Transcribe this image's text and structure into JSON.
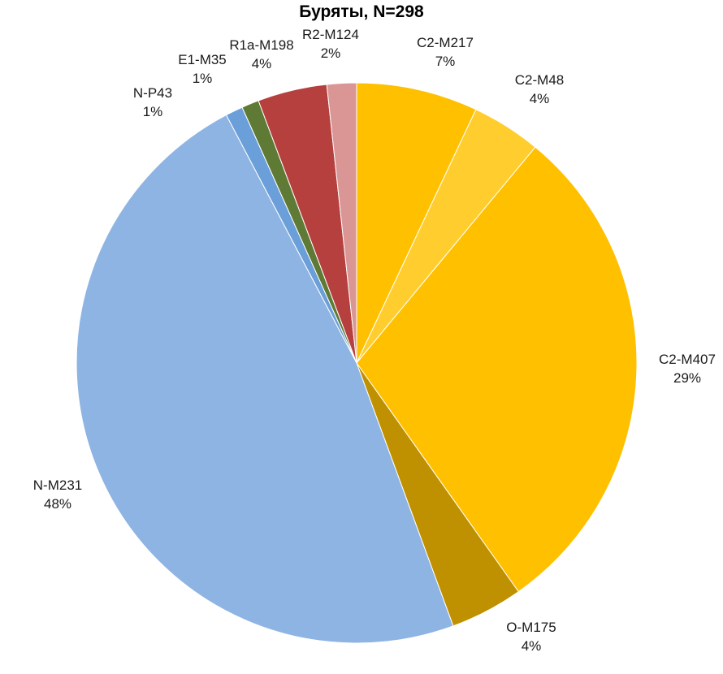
{
  "chart_data": {
    "type": "pie",
    "title": "Буряты, N=298",
    "start_angle_deg": 0,
    "direction": "clockwise",
    "slices": [
      {
        "label": "C2-M217",
        "percent_label": "7%",
        "value": 7.0,
        "color": "#FFC000"
      },
      {
        "label": "C2-M48",
        "percent_label": "4%",
        "value": 4.0,
        "color": "#FFCD2E"
      },
      {
        "label": "C2-M407",
        "percent_label": "29%",
        "value": 29.2,
        "color": "#FFC000"
      },
      {
        "label": "O-M175",
        "percent_label": "4%",
        "value": 4.2,
        "color": "#BF9000"
      },
      {
        "label": "N-M231",
        "percent_label": "48%",
        "value": 47.9,
        "color": "#8EB4E3"
      },
      {
        "label": "N-P43",
        "percent_label": "1%",
        "value": 1.0,
        "color": "#6A9FD9"
      },
      {
        "label": "E1-M35",
        "percent_label": "1%",
        "value": 1.0,
        "color": "#5F7A35"
      },
      {
        "label": "R1a-M198",
        "percent_label": "4%",
        "value": 4.0,
        "color": "#B5403E"
      },
      {
        "label": "R2-M124",
        "percent_label": "2%",
        "value": 1.7,
        "color": "#D99694"
      }
    ]
  }
}
